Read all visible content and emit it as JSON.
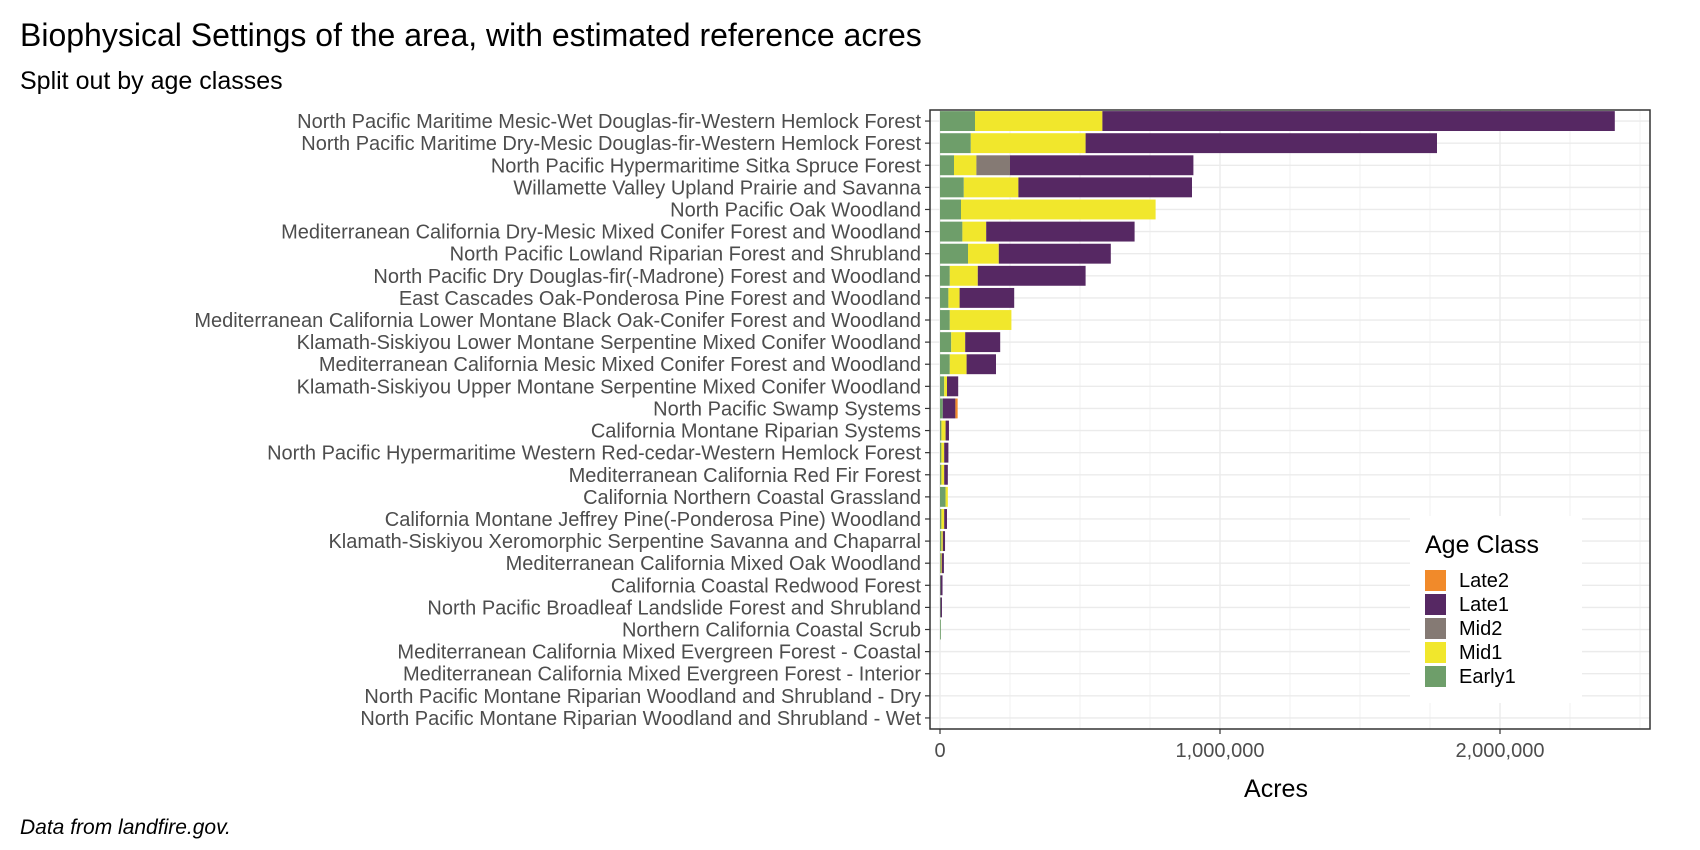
{
  "chart_data": {
    "type": "bar",
    "orientation": "horizontal",
    "stacked": true,
    "title": "Biophysical Settings of the area, with estimated reference acres",
    "subtitle": "Split out by age classes",
    "caption": "Data from landfire.gov.",
    "xlabel": "Acres",
    "ylabel": "",
    "xlim": [
      0,
      2540000
    ],
    "xticks": [
      0,
      1000000,
      2000000
    ],
    "xtick_labels": [
      "0",
      "1,000,000",
      "2,000,000"
    ],
    "grid": true,
    "legend_title": "Age Class",
    "legend_position": "bottom-right inside",
    "categories": [
      "North Pacific Maritime Mesic-Wet Douglas-fir-Western Hemlock Forest",
      "North Pacific Maritime Dry-Mesic Douglas-fir-Western Hemlock Forest",
      "North Pacific Hypermaritime Sitka Spruce Forest",
      "Willamette Valley Upland Prairie and Savanna",
      "North Pacific Oak Woodland",
      "Mediterranean California Dry-Mesic Mixed Conifer Forest and Woodland",
      "North Pacific Lowland Riparian Forest and Shrubland",
      "North Pacific Dry Douglas-fir(-Madrone) Forest and Woodland",
      "East Cascades Oak-Ponderosa Pine Forest and Woodland",
      "Mediterranean California Lower Montane Black Oak-Conifer Forest and Woodland",
      "Klamath-Siskiyou Lower Montane Serpentine Mixed Conifer Woodland",
      "Mediterranean California Mesic Mixed Conifer Forest and Woodland",
      "Klamath-Siskiyou Upper Montane Serpentine Mixed Conifer Woodland",
      "North Pacific Swamp Systems",
      "California Montane Riparian Systems",
      "North Pacific Hypermaritime Western Red-cedar-Western Hemlock Forest",
      "Mediterranean California Red Fir Forest",
      "California Northern Coastal Grassland",
      "California Montane Jeffrey Pine(-Ponderosa Pine) Woodland",
      "Klamath-Siskiyou Xeromorphic Serpentine Savanna and Chaparral",
      "Mediterranean California Mixed Oak Woodland",
      "California Coastal Redwood Forest",
      "North Pacific Broadleaf Landslide Forest and Shrubland",
      "Northern California Coastal Scrub",
      "Mediterranean California Mixed Evergreen Forest - Coastal",
      "Mediterranean California Mixed Evergreen Forest - Interior",
      "North Pacific Montane Riparian Woodland and Shrubland - Dry",
      "North Pacific Montane Riparian Woodland and Shrubland - Wet"
    ],
    "stack_order": [
      "Early1",
      "Mid1",
      "Mid2",
      "Late1",
      "Late2"
    ],
    "series": [
      {
        "name": "Early1",
        "color": "#6e9e6a",
        "values": [
          125000,
          110000,
          50000,
          85000,
          75000,
          80000,
          100000,
          35000,
          30000,
          35000,
          40000,
          35000,
          15000,
          10000,
          5000,
          5000,
          5000,
          20000,
          5000,
          5000,
          3000,
          2000,
          2000,
          3000,
          0,
          0,
          0,
          0
        ]
      },
      {
        "name": "Mid1",
        "color": "#f1e72c",
        "values": [
          455000,
          410000,
          80000,
          195000,
          695000,
          85000,
          110000,
          100000,
          40000,
          220000,
          50000,
          60000,
          10000,
          0,
          15000,
          10000,
          10000,
          8000,
          10000,
          5000,
          3000,
          0,
          0,
          0,
          0,
          0,
          0,
          0
        ]
      },
      {
        "name": "Mid2",
        "color": "#857a74",
        "values": [
          0,
          0,
          120000,
          0,
          0,
          0,
          0,
          0,
          0,
          0,
          0,
          0,
          0,
          0,
          0,
          0,
          0,
          0,
          0,
          0,
          0,
          0,
          0,
          0,
          0,
          0,
          0,
          0
        ]
      },
      {
        "name": "Late1",
        "color": "#562863",
        "values": [
          1830000,
          1255000,
          655000,
          620000,
          0,
          530000,
          400000,
          385000,
          195000,
          0,
          125000,
          105000,
          40000,
          45000,
          12000,
          15000,
          13000,
          0,
          10000,
          8000,
          8000,
          7000,
          5000,
          0,
          0,
          0,
          0,
          0
        ]
      },
      {
        "name": "Late2",
        "color": "#f18a2a",
        "values": [
          0,
          0,
          0,
          0,
          0,
          0,
          0,
          0,
          0,
          0,
          0,
          0,
          0,
          8000,
          0,
          0,
          0,
          0,
          0,
          0,
          0,
          0,
          0,
          0,
          0,
          0,
          0,
          0
        ]
      }
    ]
  }
}
